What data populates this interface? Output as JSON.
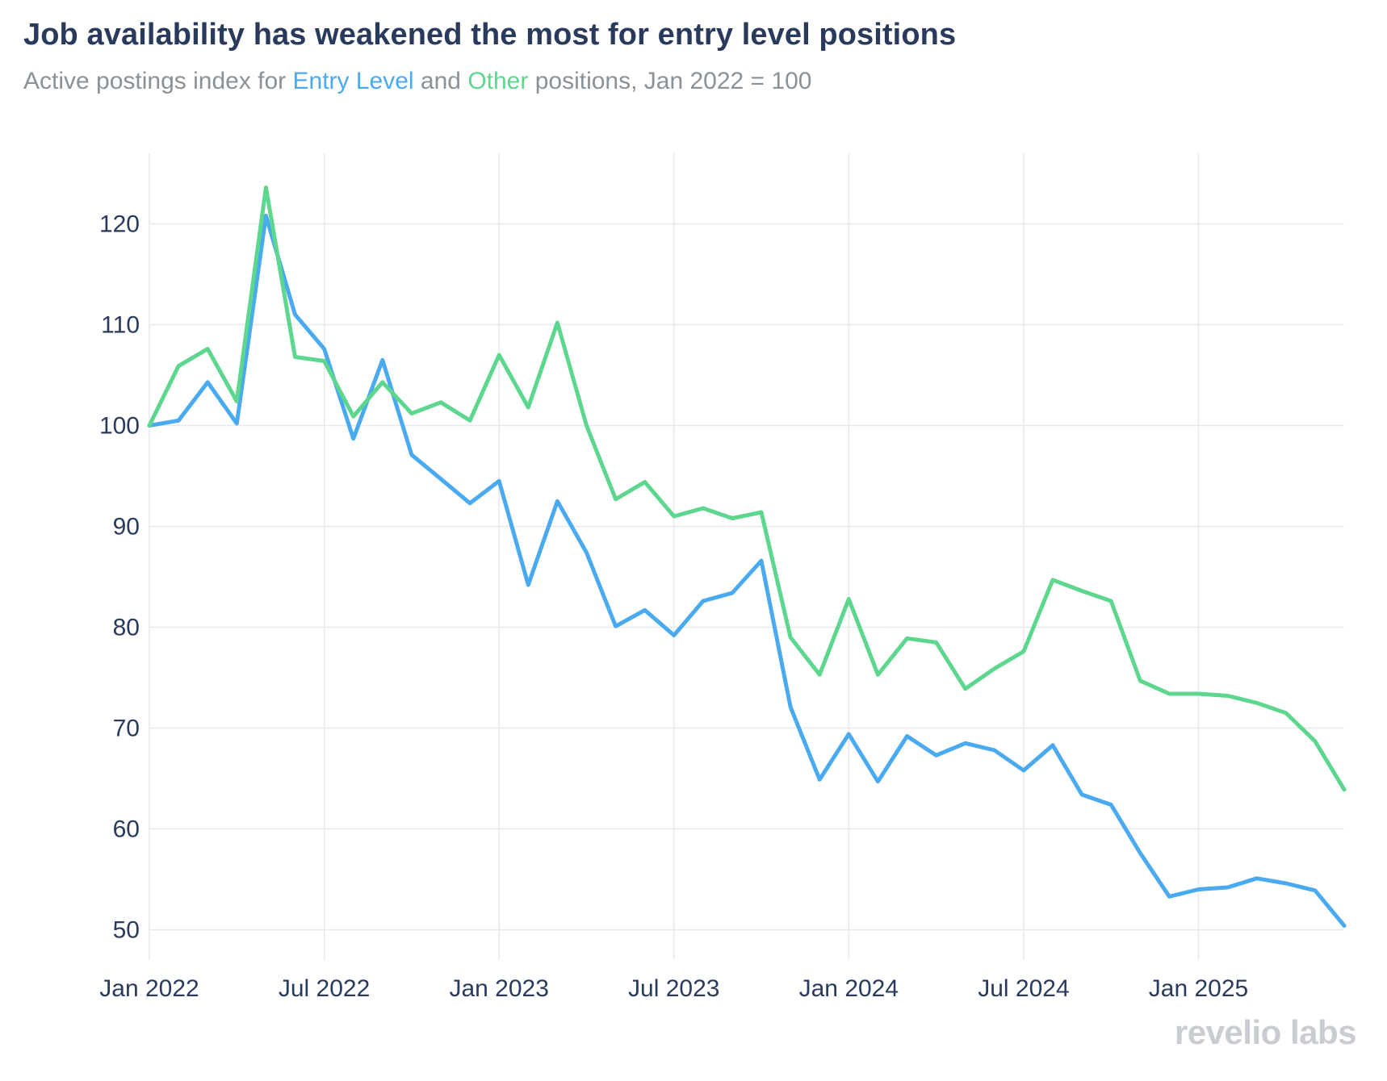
{
  "chart_data": {
    "type": "line",
    "title": "Job availability has weakened the most for entry level positions",
    "subtitle": {
      "prefix": "Active postings index for ",
      "entry": "Entry Level",
      "middle": " and ",
      "other": "Other",
      "suffix": " positions, Jan 2022 = 100"
    },
    "xlabel": "",
    "ylabel": "",
    "ylim": [
      47,
      127
    ],
    "yticks": [
      50,
      60,
      70,
      80,
      90,
      100,
      110,
      120
    ],
    "x_range": [
      0,
      41
    ],
    "xticks": [
      {
        "value": 0,
        "label": "Jan 2022"
      },
      {
        "value": 6,
        "label": "Jul 2022"
      },
      {
        "value": 12,
        "label": "Jan 2023"
      },
      {
        "value": 18,
        "label": "Jul 2023"
      },
      {
        "value": 24,
        "label": "Jan 2024"
      },
      {
        "value": 30,
        "label": "Jul 2024"
      },
      {
        "value": 36,
        "label": "Jan 2025"
      }
    ],
    "grid": true,
    "legend": "none",
    "series": [
      {
        "name": "Entry Level",
        "color": "#4aaaf0",
        "values": [
          100,
          100.5,
          104.3,
          100.2,
          120.8,
          111,
          107.6,
          98.7,
          106.5,
          97.1,
          94.7,
          92.3,
          94.5,
          84.2,
          92.5,
          87.4,
          80.1,
          81.7,
          79.2,
          82.6,
          83.4,
          86.6,
          72.1,
          64.9,
          69.4,
          64.7,
          69.2,
          67.3,
          68.5,
          67.8,
          65.8,
          68.3,
          63.4,
          62.4,
          57.6,
          53.3,
          54,
          54.2,
          55.1,
          54.6,
          53.9,
          50.4
        ]
      },
      {
        "name": "Other",
        "color": "#5dd68e",
        "values": [
          100,
          105.9,
          107.6,
          102.4,
          123.6,
          106.8,
          106.4,
          100.9,
          104.3,
          101.2,
          102.3,
          100.5,
          107,
          101.8,
          110.2,
          100,
          92.7,
          94.4,
          91,
          91.8,
          90.8,
          91.4,
          79,
          75.3,
          82.8,
          75.3,
          78.9,
          78.5,
          73.9,
          75.9,
          77.6,
          84.7,
          83.6,
          82.6,
          74.7,
          73.4,
          73.4,
          73.2,
          72.5,
          71.5,
          68.7,
          63.9
        ]
      }
    ]
  },
  "branding": {
    "logo_text": "revelio labs"
  }
}
